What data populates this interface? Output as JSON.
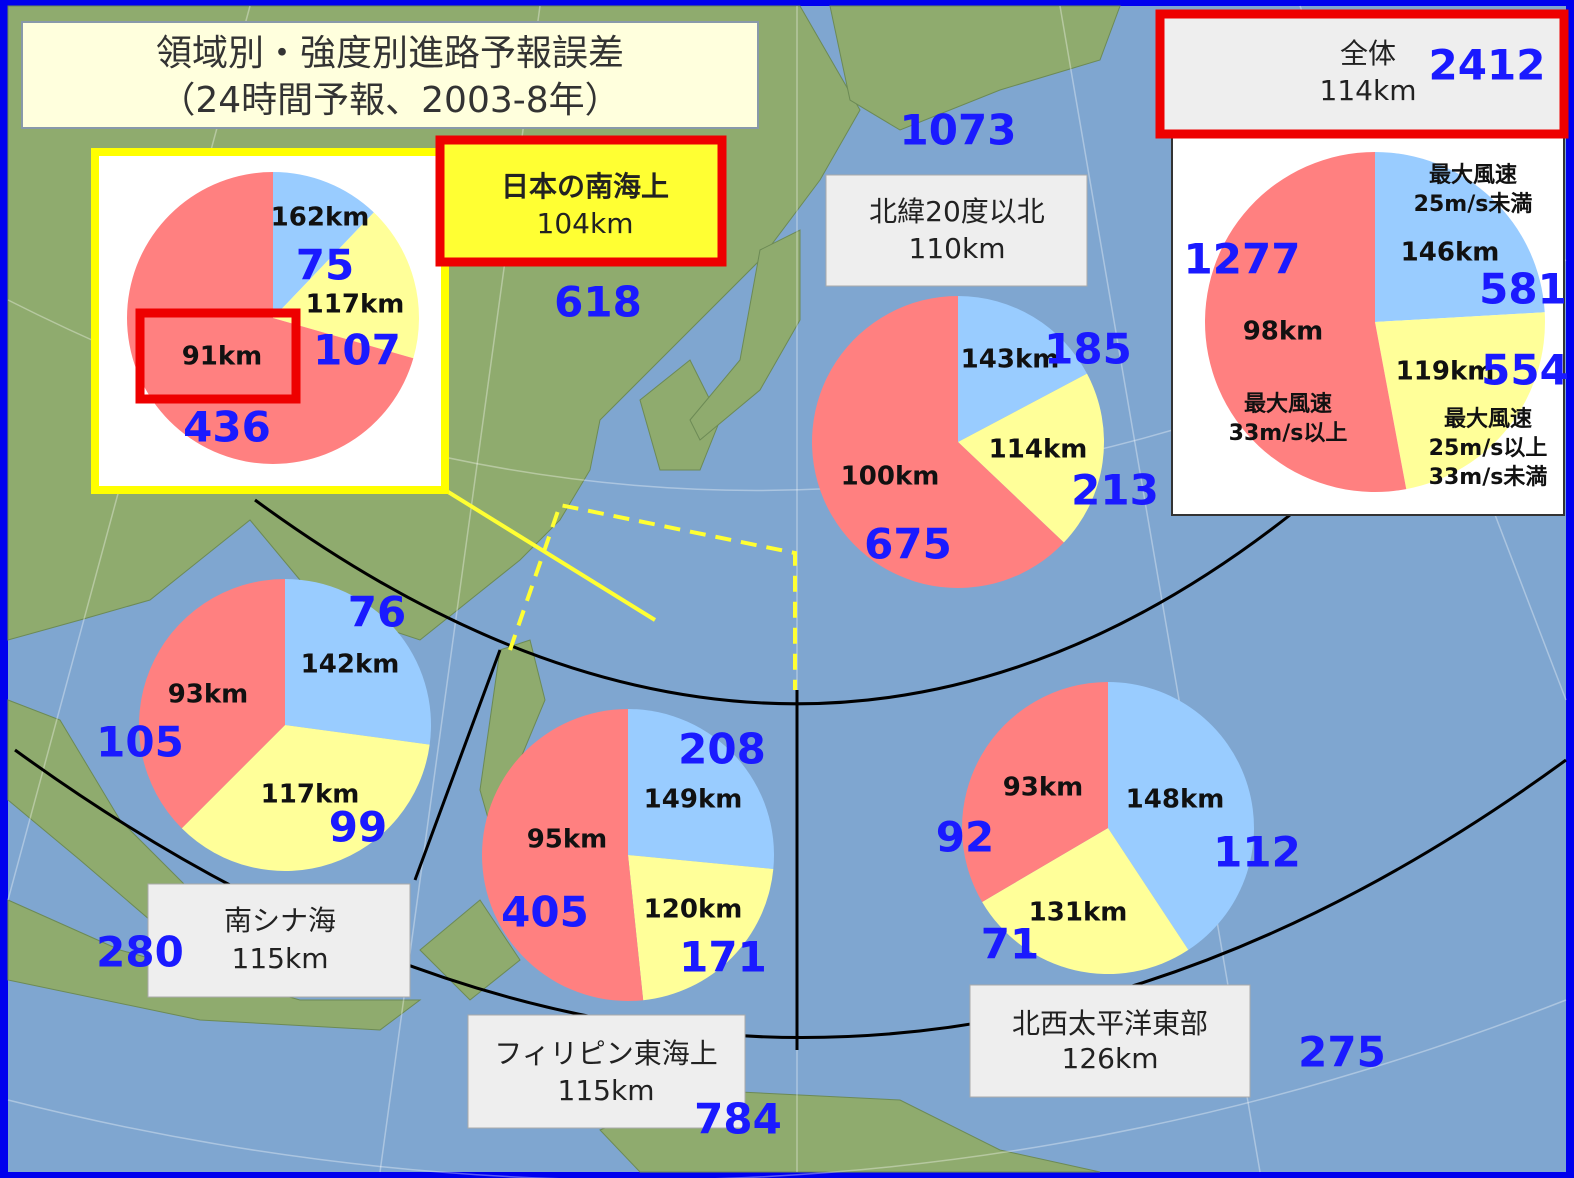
{
  "header": {
    "title_lines": [
      "領域別・強度別進路予報誤差",
      "（24時間予報、2003-8年）"
    ]
  },
  "categories": [
    {
      "lines": [
        "最大風速",
        "25m/s未満"
      ],
      "color": "#99ccff"
    },
    {
      "lines": [
        "最大風速",
        "25m/s以上",
        "33m/s未満"
      ],
      "color": "#ffff99"
    },
    {
      "lines": [
        "最大風速",
        "33m/s以上"
      ],
      "color": "#ff8080"
    }
  ],
  "overall": {
    "name": "全体",
    "error": "114km",
    "count": 2412,
    "slices": [
      {
        "error": "146km",
        "count": 581
      },
      {
        "error": "119km",
        "count": 554
      },
      {
        "error": "98km",
        "count": 1277
      }
    ]
  },
  "regions": [
    {
      "name": "日本の南海上",
      "error": "104km",
      "count": 618,
      "slices": [
        {
          "error": "162km",
          "count": 75
        },
        {
          "error": "117km",
          "count": 107
        },
        {
          "error": "91km",
          "count": 436
        }
      ]
    },
    {
      "name": "北緯20度以北",
      "error": "110km",
      "count": 1073,
      "slices": [
        {
          "error": "143km",
          "count": 185
        },
        {
          "error": "114km",
          "count": 213
        },
        {
          "error": "100km",
          "count": 675
        }
      ]
    },
    {
      "name": "南シナ海",
      "error": "115km",
      "count": 280,
      "slices": [
        {
          "error": "142km",
          "count": 76
        },
        {
          "error": "117km",
          "count": 99
        },
        {
          "error": "93km",
          "count": 105
        }
      ]
    },
    {
      "name": "フィリピン東海上",
      "error": "115km",
      "count": 784,
      "slices": [
        {
          "error": "149km",
          "count": 208
        },
        {
          "error": "120km",
          "count": 171
        },
        {
          "error": "95km",
          "count": 405
        }
      ]
    },
    {
      "name": "北西太平洋東部",
      "error": "126km",
      "count": 275,
      "slices": [
        {
          "error": "148km",
          "count": 112
        },
        {
          "error": "131km",
          "count": 71
        },
        {
          "error": "93km",
          "count": 92
        }
      ]
    }
  ]
}
